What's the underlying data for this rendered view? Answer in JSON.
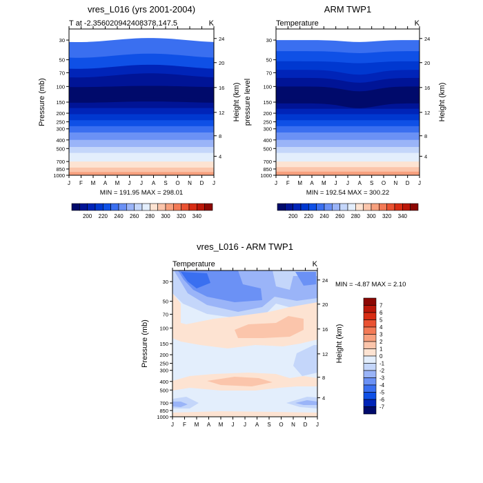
{
  "chart_data": [
    {
      "type": "heatmap",
      "title": "vres_L016 (yrs 2001-2004)",
      "subtitle_left": "T at -2.356020942408378,147.5",
      "subtitle_right": "K",
      "ylabel": "Pressure (mb)",
      "ylabel_right": "Height (km)",
      "x": [
        "J",
        "F",
        "M",
        "A",
        "M",
        "J",
        "J",
        "A",
        "S",
        "O",
        "N",
        "D",
        "J"
      ],
      "y_ticks": [
        30,
        50,
        70,
        100,
        150,
        200,
        250,
        300,
        400,
        500,
        700,
        850,
        1000
      ],
      "y_right_ticks": [
        24,
        20,
        16,
        12,
        8,
        4
      ],
      "y_scale": "log",
      "stat": "MIN = 191.95 MAX = 298.01",
      "colorbar": {
        "orientation": "horizontal",
        "labels": [
          "200",
          "220",
          "240",
          "260",
          "280",
          "300",
          "320",
          "340"
        ],
        "colors": [
          "#000a6b",
          "#001496",
          "#0024b8",
          "#0038d0",
          "#0f50e6",
          "#3a6ff0",
          "#6b91f5",
          "#9ab4f8",
          "#c4d6fa",
          "#e3eefc",
          "#fde3d2",
          "#fbc5ab",
          "#f7a07e",
          "#f37a56",
          "#ea5232",
          "#d82d14",
          "#bb1709",
          "#8c0703"
        ]
      },
      "profile_levels": [
        {
          "p": 30,
          "k": 5
        },
        {
          "p": 45,
          "k": 4
        },
        {
          "p": 60,
          "k": 2
        },
        {
          "p": 75,
          "k": 1
        },
        {
          "p": 100,
          "k": 0
        },
        {
          "p": 135,
          "k": 0
        },
        {
          "p": 150,
          "k": 1
        },
        {
          "p": 175,
          "k": 2
        },
        {
          "p": 205,
          "k": 3
        },
        {
          "p": 240,
          "k": 4
        },
        {
          "p": 280,
          "k": 5
        },
        {
          "p": 330,
          "k": 6
        },
        {
          "p": 400,
          "k": 7
        },
        {
          "p": 480,
          "k": 8
        },
        {
          "p": 560,
          "k": 9
        },
        {
          "p": 700,
          "k": 10
        },
        {
          "p": 820,
          "k": 11
        },
        {
          "p": 920,
          "k": 12
        },
        {
          "p": 1000,
          "k": 12
        }
      ]
    },
    {
      "type": "heatmap",
      "title": "ARM TWP1",
      "subtitle_left": "Temperature",
      "subtitle_right": "K",
      "ylabel": "pressure level",
      "ylabel_right": "Height (km)",
      "x": [
        "J",
        "F",
        "M",
        "A",
        "M",
        "J",
        "J",
        "A",
        "S",
        "O",
        "N",
        "D",
        "J"
      ],
      "y_ticks": [
        30,
        50,
        70,
        100,
        150,
        200,
        250,
        300,
        400,
        500,
        700,
        850,
        1000
      ],
      "y_right_ticks": [
        24,
        20,
        16,
        12,
        8,
        4
      ],
      "y_scale": "log",
      "stat": "MIN = 192.54 MAX = 300.22",
      "colorbar": {
        "orientation": "horizontal",
        "labels": [
          "200",
          "220",
          "240",
          "260",
          "280",
          "300",
          "320",
          "340"
        ],
        "colors": [
          "#000a6b",
          "#001496",
          "#0024b8",
          "#0038d0",
          "#0f50e6",
          "#3a6ff0",
          "#6b91f5",
          "#9ab4f8",
          "#c4d6fa",
          "#e3eefc",
          "#fde3d2",
          "#fbc5ab",
          "#f7a07e",
          "#f37a56",
          "#ea5232",
          "#d82d14",
          "#bb1709",
          "#8c0703"
        ]
      },
      "profile_levels": [
        {
          "p": 30,
          "k": 5
        },
        {
          "p": 40,
          "k": 4
        },
        {
          "p": 52,
          "k": 3
        },
        {
          "p": 65,
          "k": 2
        },
        {
          "p": 80,
          "k": 1
        },
        {
          "p": 100,
          "k": 0
        },
        {
          "p": 140,
          "k": 0
        },
        {
          "p": 155,
          "k": 1
        },
        {
          "p": 178,
          "k": 2
        },
        {
          "p": 205,
          "k": 3
        },
        {
          "p": 240,
          "k": 4
        },
        {
          "p": 280,
          "k": 5
        },
        {
          "p": 330,
          "k": 6
        },
        {
          "p": 400,
          "k": 7
        },
        {
          "p": 480,
          "k": 8
        },
        {
          "p": 560,
          "k": 9
        },
        {
          "p": 700,
          "k": 10
        },
        {
          "p": 810,
          "k": 11
        },
        {
          "p": 910,
          "k": 12
        },
        {
          "p": 1000,
          "k": 12
        }
      ]
    },
    {
      "type": "heatmap",
      "title": "vres_L016 - ARM TWP1",
      "subtitle_left": "Temperature",
      "subtitle_right": "K",
      "ylabel": "Pressure (mb)",
      "ylabel_right": "Height (km)",
      "x": [
        "J",
        "F",
        "M",
        "A",
        "M",
        "J",
        "J",
        "A",
        "S",
        "O",
        "N",
        "D",
        "J"
      ],
      "y_ticks": [
        30,
        50,
        70,
        100,
        150,
        200,
        250,
        300,
        400,
        500,
        700,
        850,
        1000
      ],
      "y_right_ticks": [
        24,
        20,
        16,
        12,
        8,
        4
      ],
      "y_scale": "log",
      "stat": "MIN = -4.87 MAX =   2.10",
      "colorbar": {
        "orientation": "vertical",
        "labels": [
          "7",
          "6",
          "5",
          "4",
          "3",
          "2",
          "1",
          "0",
          "-1",
          "-2",
          "-3",
          "-4",
          "-5",
          "-6",
          "-7"
        ],
        "colors": [
          "#8c0703",
          "#bb1709",
          "#d82d14",
          "#ea5232",
          "#f37a56",
          "#f7a07e",
          "#fbc5ab",
          "#fde3d2",
          "#e3eefc",
          "#c4d6fa",
          "#9ab4f8",
          "#6b91f5",
          "#3a6ff0",
          "#0f50e6",
          "#0024b8",
          "#000a6b"
        ]
      }
    }
  ]
}
